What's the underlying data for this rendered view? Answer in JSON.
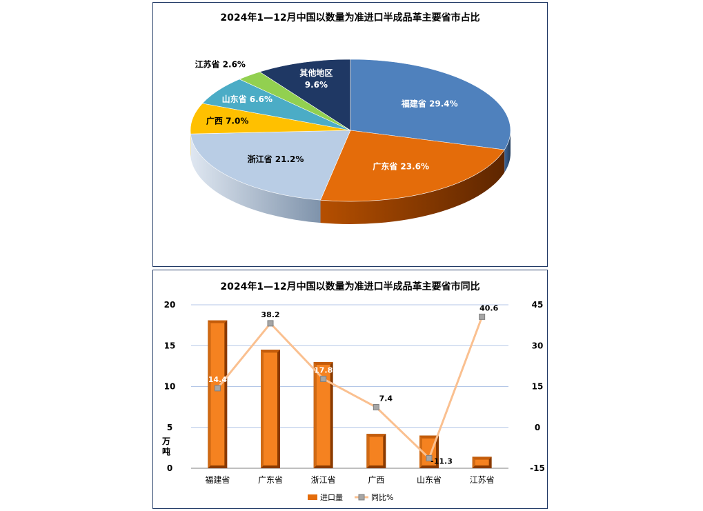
{
  "chart_data": [
    {
      "type": "pie",
      "title": "2024年1—12月中国以数量为准进口半成品革主要省市占比",
      "slices": [
        {
          "label": "福建省",
          "value": 29.4,
          "display": "福建省 29.4%",
          "color": "#4f81bd"
        },
        {
          "label": "广东省",
          "value": 23.6,
          "display": "广东省 23.6%",
          "color": "#e46c0a"
        },
        {
          "label": "浙江省",
          "value": 21.2,
          "display": "浙江省 21.2%",
          "color": "#b9cde5"
        },
        {
          "label": "广西",
          "value": 7.0,
          "display": "广西 7.0%",
          "color": "#ffc000"
        },
        {
          "label": "山东省",
          "value": 6.6,
          "display": "山东省 6.6%",
          "color": "#4bacc6"
        },
        {
          "label": "江苏省",
          "value": 2.6,
          "display": "江苏省 2.6%",
          "color": "#92d050"
        },
        {
          "label": "其他地区",
          "value": 9.6,
          "display": "其他地区 9.6%",
          "color": "#1f3864"
        }
      ]
    },
    {
      "type": "bar",
      "title": "2024年1—12月中国以数量为准进口半成品革主要省市同比",
      "categories": [
        "福建省",
        "广东省",
        "浙江省",
        "广西",
        "山东省",
        "江苏省"
      ],
      "ylabel": "万吨",
      "ylim": [
        0,
        20
      ],
      "yticks": [
        0,
        5,
        10,
        15,
        20
      ],
      "y2lim": [
        -15,
        45
      ],
      "y2ticks": [
        -15,
        0,
        15,
        30,
        45
      ],
      "grid": true,
      "legend": "bottom",
      "series": [
        {
          "name": "进口量",
          "type": "bar",
          "axis": "left",
          "color": "#e46c0a",
          "values": [
            18.1,
            14.5,
            13.0,
            4.2,
            4.0,
            1.4
          ]
        },
        {
          "name": "同比%",
          "type": "line",
          "axis": "right",
          "color": "#fac090",
          "values": [
            14.4,
            38.2,
            17.8,
            7.4,
            -11.3,
            40.6
          ],
          "labels": [
            "14.4",
            "38.2",
            "17.8",
            "7.4",
            "-11.3",
            "40.6"
          ]
        }
      ]
    }
  ]
}
